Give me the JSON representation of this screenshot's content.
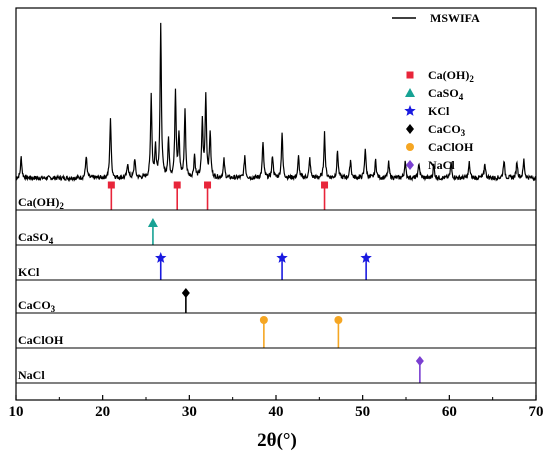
{
  "chart_data": {
    "type": "line",
    "x_axis": {
      "label": "2θ(°)",
      "range": [
        10,
        70
      ],
      "ticks": [
        10,
        20,
        30,
        40,
        50,
        60,
        70
      ],
      "tick_labels": [
        "10",
        "20",
        "30",
        "40",
        "50",
        "60",
        "70"
      ]
    },
    "pattern": {
      "name": "MSWIFA",
      "color": "#000000",
      "baseline": 0.2,
      "noise": 0.03,
      "peaks": [
        {
          "x": 10.6,
          "h": 0.14
        },
        {
          "x": 18.1,
          "h": 0.15
        },
        {
          "x": 20.9,
          "h": 0.4
        },
        {
          "x": 22.9,
          "h": 0.1
        },
        {
          "x": 23.7,
          "h": 0.13
        },
        {
          "x": 25.6,
          "h": 0.55
        },
        {
          "x": 26.1,
          "h": 0.2
        },
        {
          "x": 26.7,
          "h": 1.0
        },
        {
          "x": 27.6,
          "h": 0.25
        },
        {
          "x": 28.4,
          "h": 0.58
        },
        {
          "x": 28.8,
          "h": 0.28
        },
        {
          "x": 29.5,
          "h": 0.45
        },
        {
          "x": 30.6,
          "h": 0.15
        },
        {
          "x": 31.5,
          "h": 0.38
        },
        {
          "x": 31.9,
          "h": 0.55
        },
        {
          "x": 32.4,
          "h": 0.3
        },
        {
          "x": 34.0,
          "h": 0.12
        },
        {
          "x": 36.4,
          "h": 0.15
        },
        {
          "x": 38.5,
          "h": 0.24
        },
        {
          "x": 39.6,
          "h": 0.15
        },
        {
          "x": 40.7,
          "h": 0.3
        },
        {
          "x": 42.6,
          "h": 0.14
        },
        {
          "x": 43.9,
          "h": 0.13
        },
        {
          "x": 45.6,
          "h": 0.3
        },
        {
          "x": 47.1,
          "h": 0.18
        },
        {
          "x": 48.6,
          "h": 0.12
        },
        {
          "x": 50.3,
          "h": 0.2
        },
        {
          "x": 51.5,
          "h": 0.12
        },
        {
          "x": 53.0,
          "h": 0.1
        },
        {
          "x": 54.9,
          "h": 0.11
        },
        {
          "x": 56.5,
          "h": 0.1
        },
        {
          "x": 58.2,
          "h": 0.09
        },
        {
          "x": 60.2,
          "h": 0.1
        },
        {
          "x": 62.3,
          "h": 0.1
        },
        {
          "x": 64.1,
          "h": 0.1
        },
        {
          "x": 66.3,
          "h": 0.12
        },
        {
          "x": 67.8,
          "h": 0.11
        },
        {
          "x": 68.6,
          "h": 0.12
        }
      ]
    },
    "phases": [
      {
        "label": "Ca(OH)",
        "sub": "2",
        "color": "#e8253a",
        "marker": "square",
        "peaks": [
          21.0,
          28.6,
          32.1,
          45.6
        ]
      },
      {
        "label": "CaSO",
        "sub": "4",
        "color": "#17a294",
        "marker": "triangle",
        "peaks": [
          25.8
        ]
      },
      {
        "label": "KCl",
        "sub": "",
        "color": "#1a1ae0",
        "marker": "star",
        "peaks": [
          26.7,
          40.7,
          50.4
        ]
      },
      {
        "label": "CaCO",
        "sub": "3",
        "color": "#000000",
        "marker": "diamond",
        "peaks": [
          29.6
        ]
      },
      {
        "label": "CaClOH",
        "sub": "",
        "color": "#f5a623",
        "marker": "circle",
        "peaks": [
          38.6,
          47.2
        ]
      },
      {
        "label": "NaCl",
        "sub": "",
        "color": "#7a3fd1",
        "marker": "diamond",
        "peaks": [
          56.6
        ]
      }
    ],
    "legend": {
      "position": "top-right",
      "entries": [
        {
          "text": "MSWIFA",
          "marker": "line",
          "color": "#000000"
        },
        {
          "text": "Ca(OH)",
          "sub": "2",
          "marker": "square",
          "color": "#e8253a"
        },
        {
          "text": "CaSO",
          "sub": "4",
          "marker": "triangle",
          "color": "#17a294"
        },
        {
          "text": "KCl",
          "sub": "",
          "marker": "star",
          "color": "#1a1ae0"
        },
        {
          "text": "CaCO",
          "sub": "3",
          "marker": "diamond",
          "color": "#000000"
        },
        {
          "text": "CaClOH",
          "sub": "",
          "marker": "circle",
          "color": "#f5a623"
        },
        {
          "text": "NaCl",
          "sub": "",
          "marker": "diamond",
          "color": "#7a3fd1"
        }
      ]
    }
  }
}
